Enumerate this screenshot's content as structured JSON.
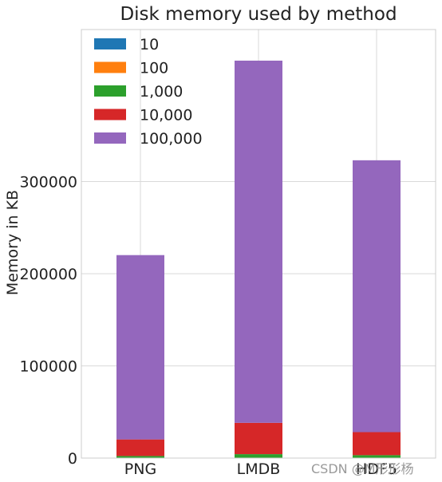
{
  "chart_data": {
    "type": "bar",
    "stacked": true,
    "title": "Disk memory used by method",
    "xlabel": "",
    "ylabel": "Memory in KB",
    "categories": [
      "PNG",
      "LMDB",
      "HDF5"
    ],
    "series": [
      {
        "name": "10",
        "color": "#1f77b4",
        "values": [
          20,
          40,
          30
        ]
      },
      {
        "name": "100",
        "color": "#ff7f0e",
        "values": [
          200,
          400,
          300
        ]
      },
      {
        "name": "1,000",
        "color": "#2ca02c",
        "values": [
          2000,
          3800,
          2800
        ]
      },
      {
        "name": "10,000",
        "color": "#d62728",
        "values": [
          18000,
          34000,
          25000
        ]
      },
      {
        "name": "100,000",
        "color": "#9467bd",
        "values": [
          200000,
          393000,
          295000
        ]
      }
    ],
    "yticks": [
      0,
      100000,
      200000,
      300000
    ],
    "ytick_labels": [
      "0",
      "100000",
      "200000",
      "300000"
    ],
    "ylim": [
      0,
      465000
    ],
    "grid": true,
    "legend_position": "top-left"
  },
  "watermark": "CSDN @M形形杨"
}
